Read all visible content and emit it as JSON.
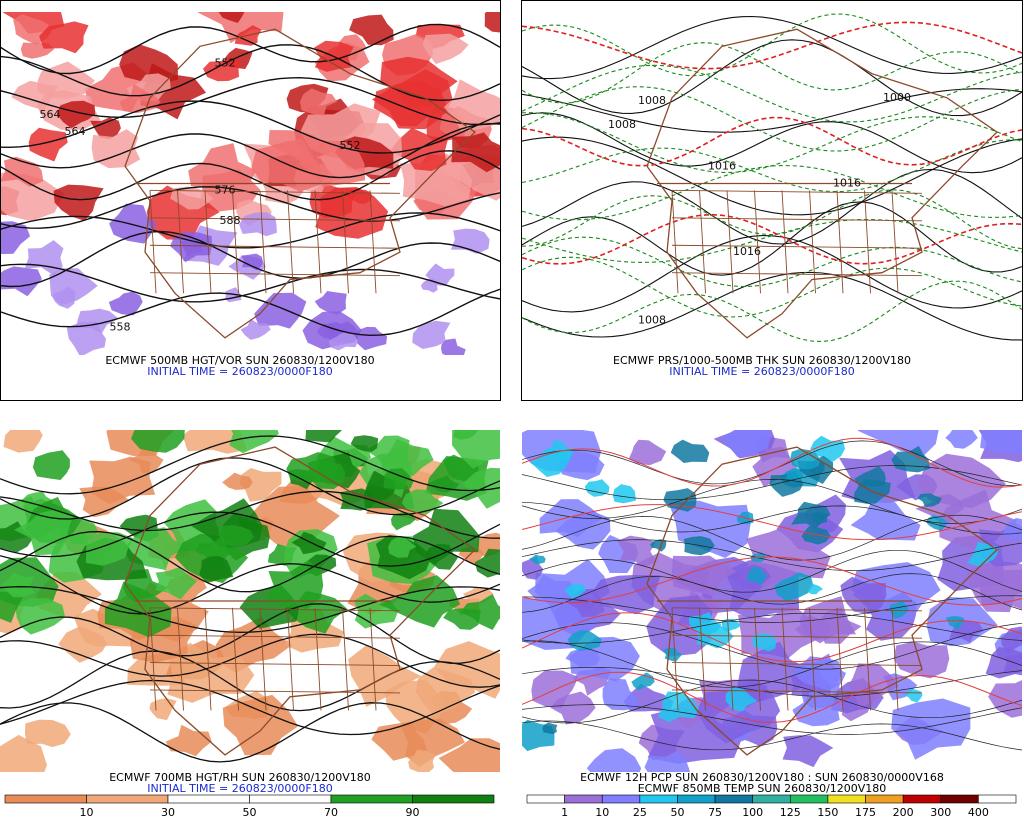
{
  "panels": [
    {
      "caption": "ECMWF 500MB HGT/VOR SUN 260830/1200V180",
      "initial_time": "INITIAL TIME = 260823/0000F180",
      "map_labels": [
        "564",
        "552",
        "552",
        "576",
        "588",
        "558",
        "564"
      ]
    },
    {
      "caption": "ECMWF PRS/1000-500MB THK SUN 260830/1200V180",
      "initial_time": "INITIAL TIME = 260823/0000F180",
      "map_labels": [
        "1008",
        "1016",
        "1008",
        "1016",
        "1000",
        "1016",
        "1008"
      ]
    },
    {
      "caption": "ECMWF 700MB HGT/RH SUN 260830/1200V180",
      "initial_time": "INITIAL TIME = 260823/0000F180",
      "colorbar": {
        "labels": [
          10,
          30,
          50,
          70,
          90
        ],
        "colors": [
          "#e88c58",
          "#f0a878",
          "#ffffff",
          "#ffffff",
          "#20a020",
          "#108010"
        ]
      }
    },
    {
      "caption": "ECMWF 12H PCP SUN 260830/1200V180 : SUN 260830/0000V168",
      "caption2": "ECMWF 850MB TEMP SUN 260830/1200V180",
      "colorbar": {
        "labels": [
          1,
          10,
          25,
          50,
          75,
          100,
          125,
          150,
          175,
          200,
          300,
          400
        ],
        "colors": [
          "#ffffff",
          "#9b6fd8",
          "#7f7fff",
          "#20c8f0",
          "#10a0c8",
          "#1078a0",
          "#30b0a0",
          "#20c060",
          "#f0e020",
          "#f0a020",
          "#c00000",
          "#700000",
          "#ffffff"
        ]
      }
    }
  ]
}
